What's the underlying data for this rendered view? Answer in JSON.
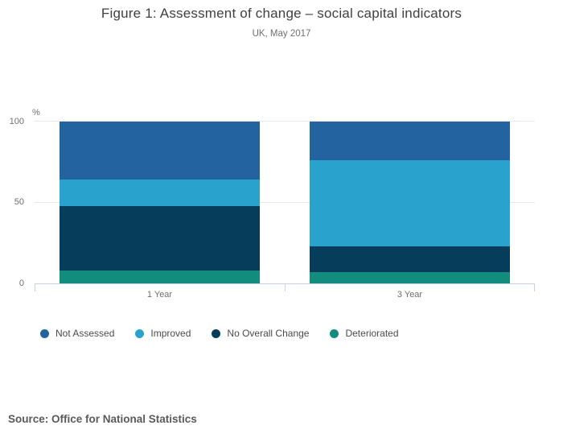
{
  "header": {
    "title": "Figure 1: Assessment of change – social capital indicators",
    "subtitle": "UK, May 2017"
  },
  "chart_data": {
    "type": "bar",
    "stacked": true,
    "orientation": "vertical",
    "title": "Figure 1: Assessment of change – social capital indicators",
    "subtitle": "UK, May 2017",
    "categories": [
      "1 Year",
      "3 Year"
    ],
    "series": [
      {
        "name": "Not Assessed",
        "color": "#2364A0",
        "values": [
          36,
          24
        ]
      },
      {
        "name": "Improved",
        "color": "#29A2CE",
        "values": [
          16,
          53
        ]
      },
      {
        "name": "No Overall Change",
        "color": "#063D5A",
        "values": [
          40,
          16
        ]
      },
      {
        "name": "Deteriorated",
        "color": "#128C7D",
        "values": [
          8,
          7
        ]
      }
    ],
    "stack_order_note": "series listed top-to-bottom as stacked in each bar",
    "ylabel": "%",
    "ylim": [
      0,
      100
    ],
    "yticks": [
      0,
      50,
      100
    ],
    "yticks_display": [
      "100",
      "50",
      "0"
    ],
    "grid": true,
    "legend_position": "bottom-left"
  },
  "source": {
    "label": "Source: Office for National Statistics"
  }
}
